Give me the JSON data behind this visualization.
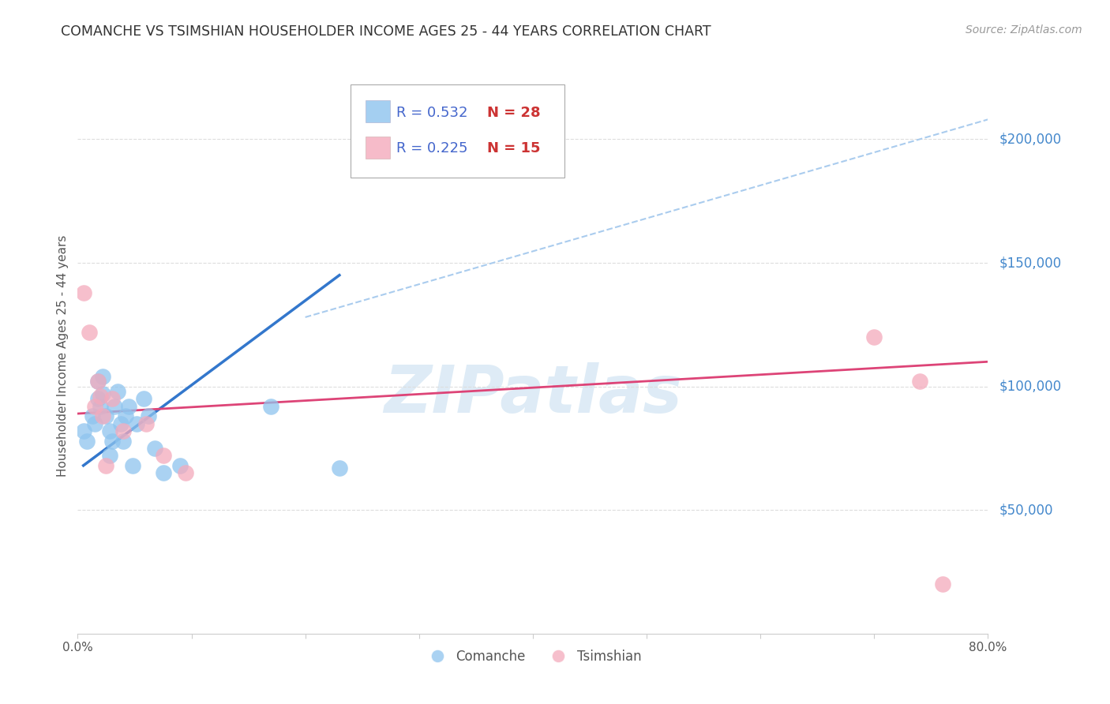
{
  "title": "COMANCHE VS TSIMSHIAN HOUSEHOLDER INCOME AGES 25 - 44 YEARS CORRELATION CHART",
  "source": "Source: ZipAtlas.com",
  "ylabel": "Householder Income Ages 25 - 44 years",
  "ytick_labels": [
    "$50,000",
    "$100,000",
    "$150,000",
    "$200,000"
  ],
  "ytick_values": [
    50000,
    100000,
    150000,
    200000
  ],
  "ymin": 0,
  "ymax": 225000,
  "xmin": 0.0,
  "xmax": 0.8,
  "comanche_color": "#8EC4EE",
  "tsimshian_color": "#F4AABC",
  "comanche_line_color": "#3377CC",
  "tsimshian_line_color": "#DD4477",
  "dashed_line_color": "#AACCEE",
  "background_color": "#ffffff",
  "comanche_x": [
    0.005,
    0.008,
    0.013,
    0.015,
    0.018,
    0.018,
    0.02,
    0.022,
    0.022,
    0.025,
    0.028,
    0.028,
    0.03,
    0.032,
    0.035,
    0.038,
    0.04,
    0.042,
    0.045,
    0.048,
    0.052,
    0.058,
    0.062,
    0.068,
    0.075,
    0.09,
    0.17,
    0.23
  ],
  "comanche_y": [
    82000,
    78000,
    88000,
    85000,
    95000,
    102000,
    92000,
    97000,
    104000,
    88000,
    82000,
    72000,
    78000,
    92000,
    98000,
    85000,
    78000,
    88000,
    92000,
    68000,
    85000,
    95000,
    88000,
    75000,
    65000,
    68000,
    92000,
    67000
  ],
  "tsimshian_x": [
    0.005,
    0.01,
    0.015,
    0.018,
    0.02,
    0.022,
    0.025,
    0.03,
    0.04,
    0.06,
    0.075,
    0.095,
    0.7,
    0.74,
    0.76
  ],
  "tsimshian_y": [
    138000,
    122000,
    92000,
    102000,
    96000,
    88000,
    68000,
    95000,
    82000,
    85000,
    72000,
    65000,
    120000,
    102000,
    20000
  ],
  "comanche_trendline_x": [
    0.005,
    0.23
  ],
  "comanche_trendline_y": [
    68000,
    145000
  ],
  "tsimshian_trendline_x": [
    0.0,
    0.8
  ],
  "tsimshian_trendline_y": [
    89000,
    110000
  ],
  "dashed_line_x": [
    0.2,
    0.8
  ],
  "dashed_line_y": [
    128000,
    208000
  ],
  "watermark_text": "ZIPatlas",
  "watermark_color": "#C8DFF0",
  "legend_r1": "R = 0.532",
  "legend_n1": "N = 28",
  "legend_r2": "R = 0.225",
  "legend_n2": "N = 15",
  "legend_text_color": "#4466CC",
  "legend_n_color": "#CC3333"
}
